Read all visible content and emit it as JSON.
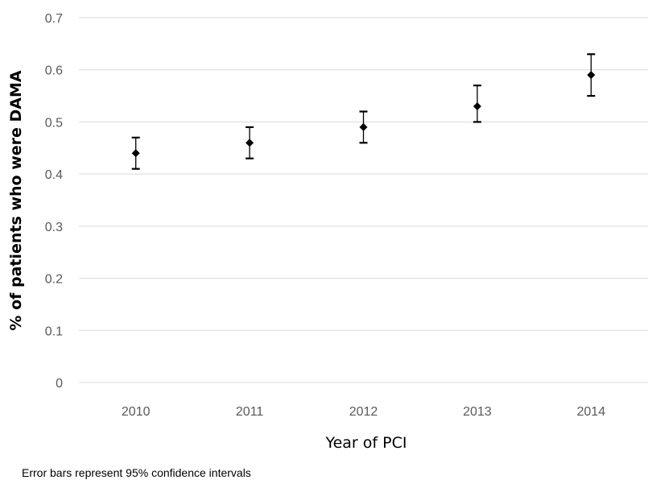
{
  "chart_data": {
    "type": "scatter",
    "ylabel": "% of patients who were DAMA",
    "xlabel": "Year of PCI",
    "note": "Error bars represent 95% confidence intervals",
    "categories": [
      "2010",
      "2011",
      "2012",
      "2013",
      "2014"
    ],
    "series": [
      {
        "values": [
          0.44,
          0.46,
          0.49,
          0.53,
          0.59
        ],
        "ci_lower": [
          0.41,
          0.43,
          0.46,
          0.5,
          0.55
        ],
        "ci_upper": [
          0.47,
          0.49,
          0.52,
          0.57,
          0.63
        ]
      }
    ],
    "ylim": [
      0,
      0.7
    ],
    "yticks": [
      "0",
      "0.1",
      "0.2",
      "0.3",
      "0.4",
      "0.5",
      "0.6",
      "0.7"
    ],
    "grid": true,
    "legend": "none",
    "colors": {
      "marker": "#000000",
      "grid": "#d9d9d9",
      "tick_text": "#595959"
    }
  }
}
